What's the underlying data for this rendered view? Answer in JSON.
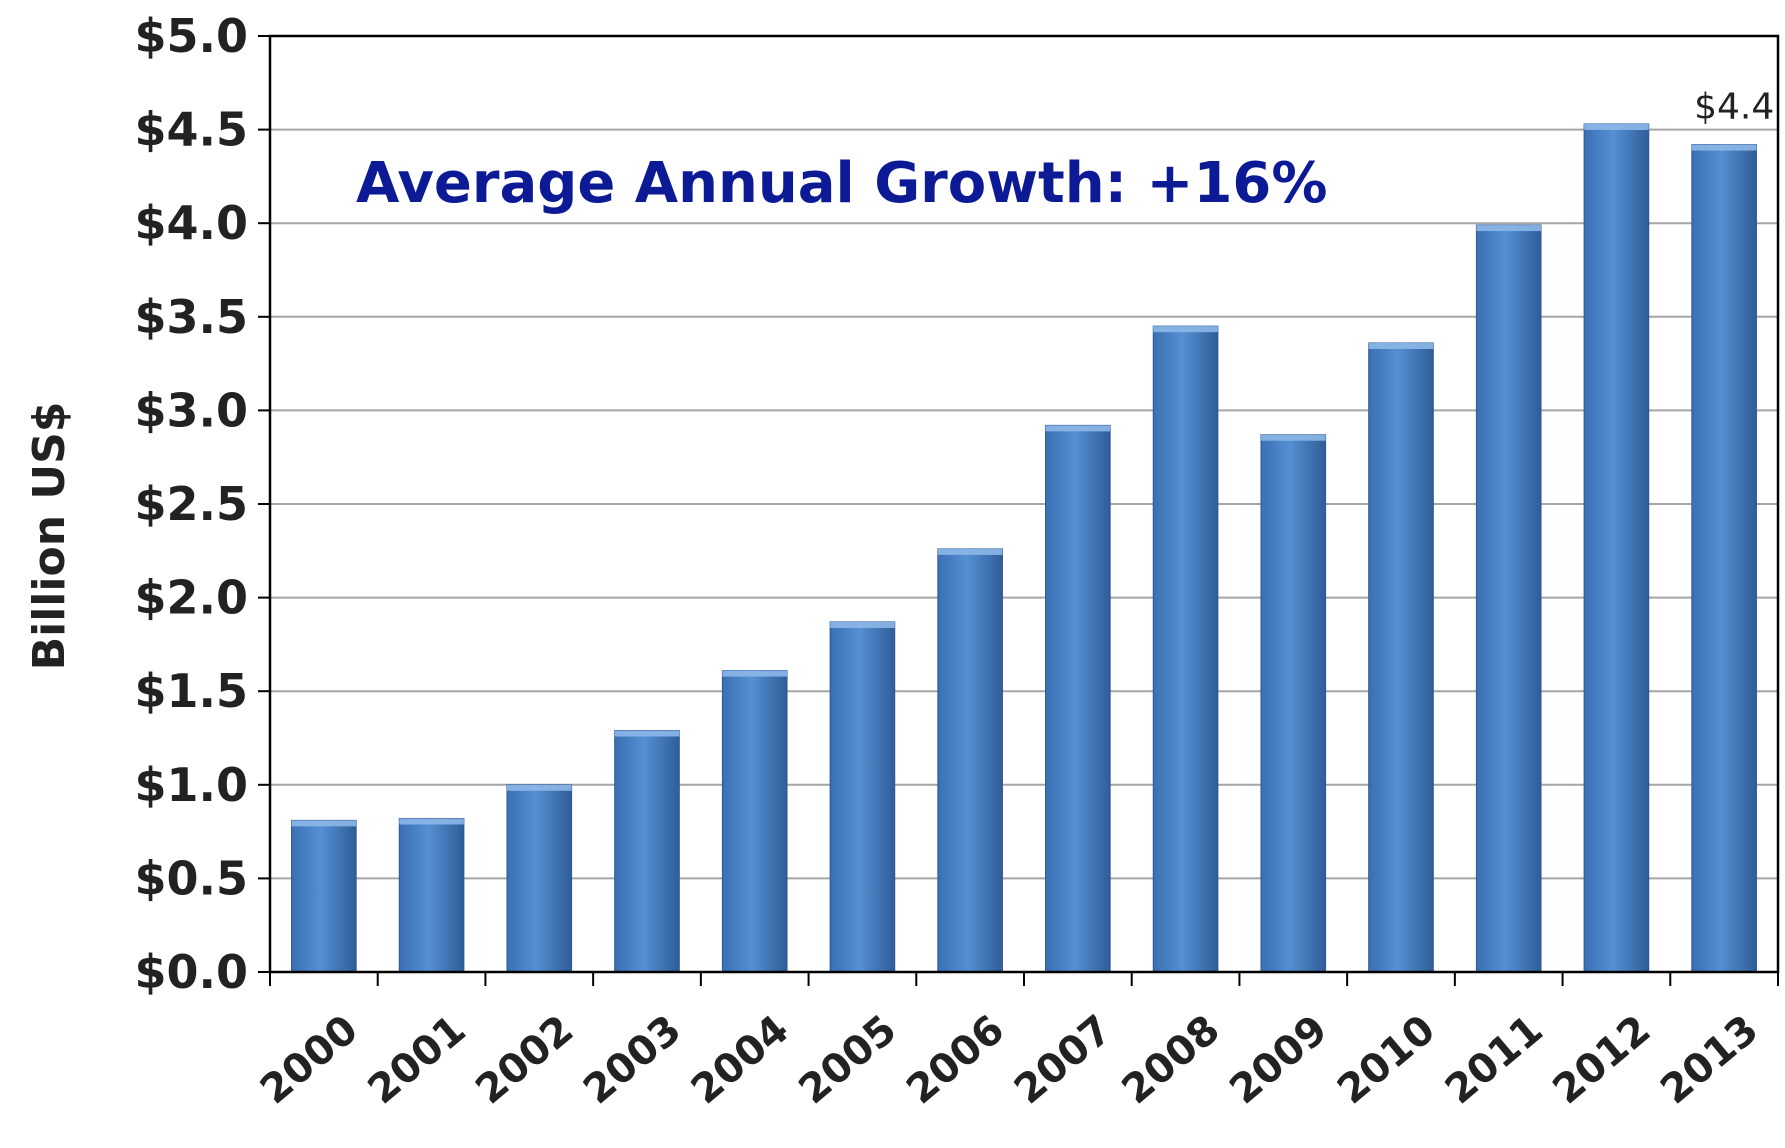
{
  "chart_data": {
    "type": "bar",
    "categories": [
      "2000",
      "2001",
      "2002",
      "2003",
      "2004",
      "2005",
      "2006",
      "2007",
      "2008",
      "2009",
      "2010",
      "2011",
      "2012",
      "2013"
    ],
    "values": [
      0.81,
      0.82,
      1.0,
      1.29,
      1.61,
      1.87,
      2.26,
      2.92,
      3.45,
      2.87,
      3.36,
      3.99,
      4.53,
      4.42
    ],
    "title": "",
    "xlabel": "",
    "ylabel": "Billion US$",
    "ylim": [
      0,
      5.0
    ],
    "yticks": [
      "$0.0",
      "$0.5",
      "$1.0",
      "$1.5",
      "$2.0",
      "$2.5",
      "$3.0",
      "$3.5",
      "$4.0",
      "$4.5",
      "$5.0"
    ],
    "annotation": "Average Annual Growth:  +16%",
    "data_labels": [
      {
        "category": "2013",
        "text": "$4.4"
      }
    ],
    "grid": true,
    "colors": {
      "bar": "#4a80c4",
      "annotation": "#0d1a96"
    }
  }
}
